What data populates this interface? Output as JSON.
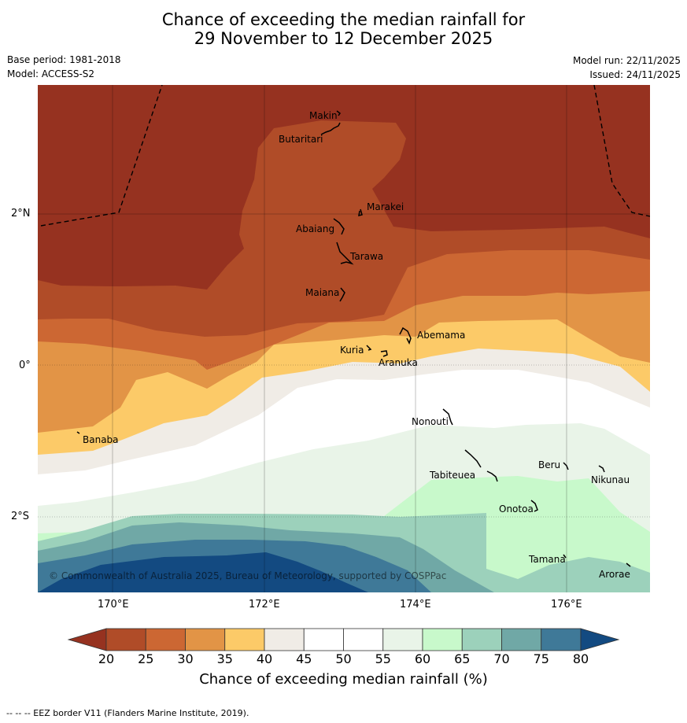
{
  "title": {
    "line1": "Chance of exceeding the median rainfall for",
    "line2": "29 November to 12 December 2025"
  },
  "meta": {
    "base_period": "Base period: 1981-2018",
    "model": "Model: ACCESS-S2",
    "model_run": "Model run: 22/11/2025",
    "issued": "Issued: 24/11/2025"
  },
  "axes": {
    "lat_labels": [
      "2°N",
      "0°",
      "2°S"
    ],
    "lon_labels": [
      "170°E",
      "172°E",
      "174°E",
      "176°E"
    ]
  },
  "islands": {
    "makin": "Makin",
    "butaritari": "Butaritari",
    "marakei": "Marakei",
    "abaiang": "Abaiang",
    "tarawa": "Tarawa",
    "maiana": "Maiana",
    "abemama": "Abemama",
    "kuria": "Kuria",
    "aranuka": "Aranuka",
    "nonouti": "Nonouti",
    "banaba": "Banaba",
    "beru": "Beru",
    "nikunau": "Nikunau",
    "tabiteuea": "Tabiteuea",
    "onotoa": "Onotoa",
    "tamana": "Tamana",
    "arorae": "Arorae"
  },
  "copyright": "© Commonwealth of Australia 2025, Bureau of Meteorology, supported by COSPPac",
  "colorbar": {
    "title": "Chance of exceeding median rainfall (%)",
    "ticks": [
      "20",
      "25",
      "30",
      "35",
      "40",
      "45",
      "50",
      "55",
      "60",
      "65",
      "70",
      "75",
      "80"
    ],
    "colors": [
      "#963220",
      "#b04c28",
      "#cc6733",
      "#e29446",
      "#fcca68",
      "#f0ece6",
      "#ffffff",
      "#ffffff",
      "#e9f4e8",
      "#c8f9cb",
      "#9cd1bb",
      "#70a8a6",
      "#3f7998",
      "#134a81"
    ]
  },
  "footer": "--  --  -- EEZ border V11 (Flanders Marine Institute, 2019)."
}
